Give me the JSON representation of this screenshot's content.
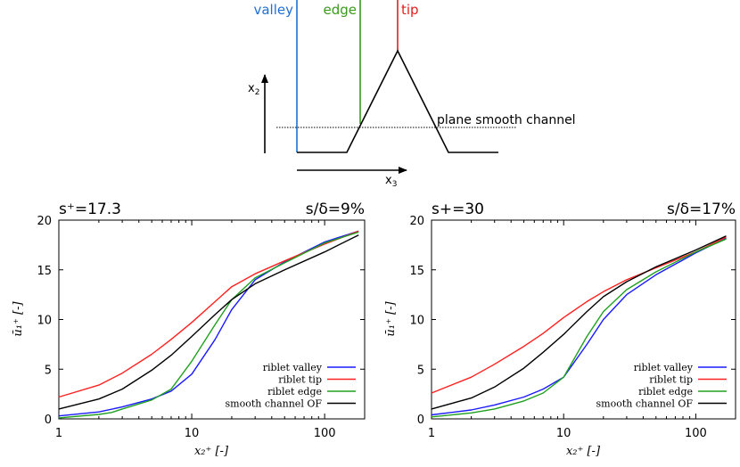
{
  "schematic": {
    "labels": {
      "valley": "valley",
      "edge": "edge",
      "tip": "tip",
      "x2_base": "x",
      "x2_sub": "2",
      "x3_base": "x",
      "x3_sub": "3",
      "plane_label": "plane smooth channel"
    },
    "colors": {
      "valley": "#1f6fd6",
      "edge": "#3a9a1a",
      "tip": "#e02020",
      "profile": "#000000"
    }
  },
  "chart_data": [
    {
      "type": "line",
      "title_left": "s⁺=17.3",
      "title_right": "s/δ=9%",
      "xscale": "log",
      "xlim": [
        1,
        200
      ],
      "ylim": [
        0,
        20
      ],
      "xticks": [
        1,
        10,
        100
      ],
      "xtick_labels": [
        "1",
        "10",
        "100"
      ],
      "yticks": [
        0,
        5,
        10,
        15,
        20
      ],
      "ytick_labels": [
        "0",
        "5",
        "10",
        "15",
        "20"
      ],
      "xlabel": "x₂⁺ [-]",
      "ylabel": "ū₁⁺ [-]",
      "legend_position": "bottom-right",
      "series": [
        {
          "name": "riblet valley",
          "color": "#1a1aff",
          "x": [
            1,
            2,
            3,
            5,
            7,
            10,
            15,
            20,
            30,
            50,
            100,
            180
          ],
          "y": [
            0.3,
            0.7,
            1.2,
            2.0,
            2.8,
            4.5,
            8.0,
            11.0,
            14.0,
            15.8,
            17.8,
            18.9
          ]
        },
        {
          "name": "riblet tip",
          "color": "#ff2020",
          "x": [
            1,
            2,
            3,
            5,
            7,
            10,
            15,
            20,
            30,
            50,
            100,
            180
          ],
          "y": [
            2.2,
            3.4,
            4.6,
            6.5,
            8.0,
            9.7,
            11.8,
            13.3,
            14.6,
            15.9,
            17.6,
            18.9
          ]
        },
        {
          "name": "riblet edge",
          "color": "#20a020",
          "x": [
            1,
            2,
            2.5,
            3,
            5,
            7,
            10,
            15,
            20,
            30,
            50,
            100,
            180
          ],
          "y": [
            0.1,
            0.45,
            0.65,
            1.0,
            1.9,
            3.0,
            5.8,
            9.5,
            12.0,
            14.2,
            15.7,
            17.7,
            18.8
          ]
        },
        {
          "name": "smooth channel OF",
          "color": "#000000",
          "x": [
            1,
            2,
            3,
            5,
            7,
            10,
            15,
            20,
            30,
            50,
            100,
            180
          ],
          "y": [
            1.0,
            2.0,
            3.0,
            4.9,
            6.4,
            8.3,
            10.5,
            12.0,
            13.6,
            15.0,
            16.8,
            18.5
          ]
        }
      ]
    },
    {
      "type": "line",
      "title_left": "s+=30",
      "title_right": "s/δ=17%",
      "xscale": "log",
      "xlim": [
        1,
        200
      ],
      "ylim": [
        0,
        20
      ],
      "xticks": [
        1,
        10,
        100
      ],
      "xtick_labels": [
        "1",
        "10",
        "100"
      ],
      "yticks": [
        0,
        5,
        10,
        15,
        20
      ],
      "ytick_labels": [
        "0",
        "5",
        "10",
        "15",
        "20"
      ],
      "xlabel": "x₂⁺ [-]",
      "ylabel": "ū₁⁺ [-]",
      "legend_position": "bottom-right",
      "series": [
        {
          "name": "riblet valley",
          "color": "#1a1aff",
          "x": [
            1,
            2,
            3,
            5,
            7,
            10,
            15,
            20,
            30,
            50,
            100,
            170
          ],
          "y": [
            0.4,
            0.9,
            1.4,
            2.2,
            3.0,
            4.2,
            7.5,
            10.0,
            12.5,
            14.5,
            16.7,
            18.2
          ]
        },
        {
          "name": "riblet tip",
          "color": "#ff2020",
          "x": [
            1,
            2,
            3,
            5,
            7,
            10,
            15,
            20,
            30,
            50,
            100,
            170
          ],
          "y": [
            2.6,
            4.2,
            5.5,
            7.3,
            8.6,
            10.2,
            11.8,
            12.8,
            14.0,
            15.2,
            16.8,
            18.3
          ]
        },
        {
          "name": "riblet edge",
          "color": "#20a020",
          "x": [
            1,
            2,
            3,
            5,
            7,
            10,
            15,
            20,
            30,
            50,
            100,
            170
          ],
          "y": [
            0.2,
            0.6,
            1.0,
            1.8,
            2.6,
            4.2,
            8.3,
            10.8,
            13.0,
            14.8,
            16.8,
            18.1
          ]
        },
        {
          "name": "smooth channel OF",
          "color": "#000000",
          "x": [
            1,
            2,
            3,
            5,
            7,
            10,
            15,
            20,
            30,
            50,
            100,
            170
          ],
          "y": [
            1.0,
            2.1,
            3.2,
            5.1,
            6.7,
            8.5,
            10.8,
            12.3,
            13.8,
            15.3,
            17.0,
            18.4
          ]
        }
      ]
    }
  ]
}
